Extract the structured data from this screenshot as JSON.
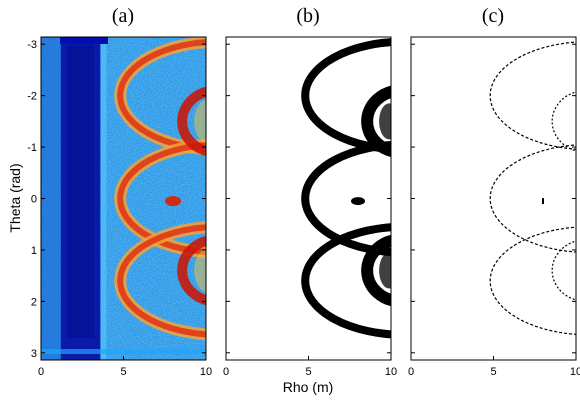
{
  "chart_data": {
    "type": "heatmap",
    "panels": [
      {
        "label": "(a)",
        "colormap": "jet"
      },
      {
        "label": "(b)",
        "colormap": "binary"
      },
      {
        "label": "(c)",
        "colormap": "binary"
      }
    ],
    "xlabel": "Rho (m)",
    "ylabel": "Theta (rad)",
    "xlim": [
      0,
      10
    ],
    "ylim": [
      -3.14,
      3.14
    ],
    "x_ticks": [
      "0",
      "5",
      "10"
    ],
    "y_ticks": [
      "-3",
      "-2",
      "-1",
      "0",
      "1",
      "2",
      "3"
    ],
    "y_tick_values": [
      -3,
      -2,
      -1,
      0,
      1,
      2,
      3
    ],
    "x_tick_values": [
      0,
      5,
      10
    ],
    "features": {
      "dark_band_rho": [
        1.2,
        3.6
      ],
      "arc_centers_theta": [
        -2.0,
        0.0,
        1.6
      ],
      "arc_radius_theta": 1.05,
      "arc_start_rho": 4.8,
      "blob": {
        "rho": 8.0,
        "theta": 0.05
      },
      "hot_arcs_centers_theta": [
        -1.5,
        1.4
      ],
      "hot_arc_rho": 8.8
    },
    "grid": false
  }
}
